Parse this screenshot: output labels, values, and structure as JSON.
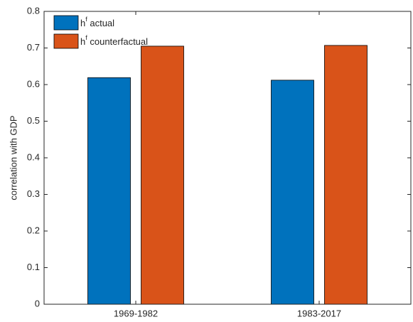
{
  "chart_data": {
    "type": "bar",
    "y_label": "correlation with GDP",
    "categories": [
      "1969-1982",
      "1983-2017"
    ],
    "series": [
      {
        "name": "h^f actual",
        "color": "#0072bd",
        "values": [
          0.619,
          0.612
        ]
      },
      {
        "name": "h^f counterfactual",
        "color": "#d95319",
        "values": [
          0.705,
          0.707
        ]
      }
    ],
    "ylim": [
      0,
      0.8
    ],
    "yticks": [
      0,
      0.1,
      0.2,
      0.3,
      0.4,
      0.5,
      0.6,
      0.7,
      0.8
    ],
    "legend": "upper-left"
  }
}
